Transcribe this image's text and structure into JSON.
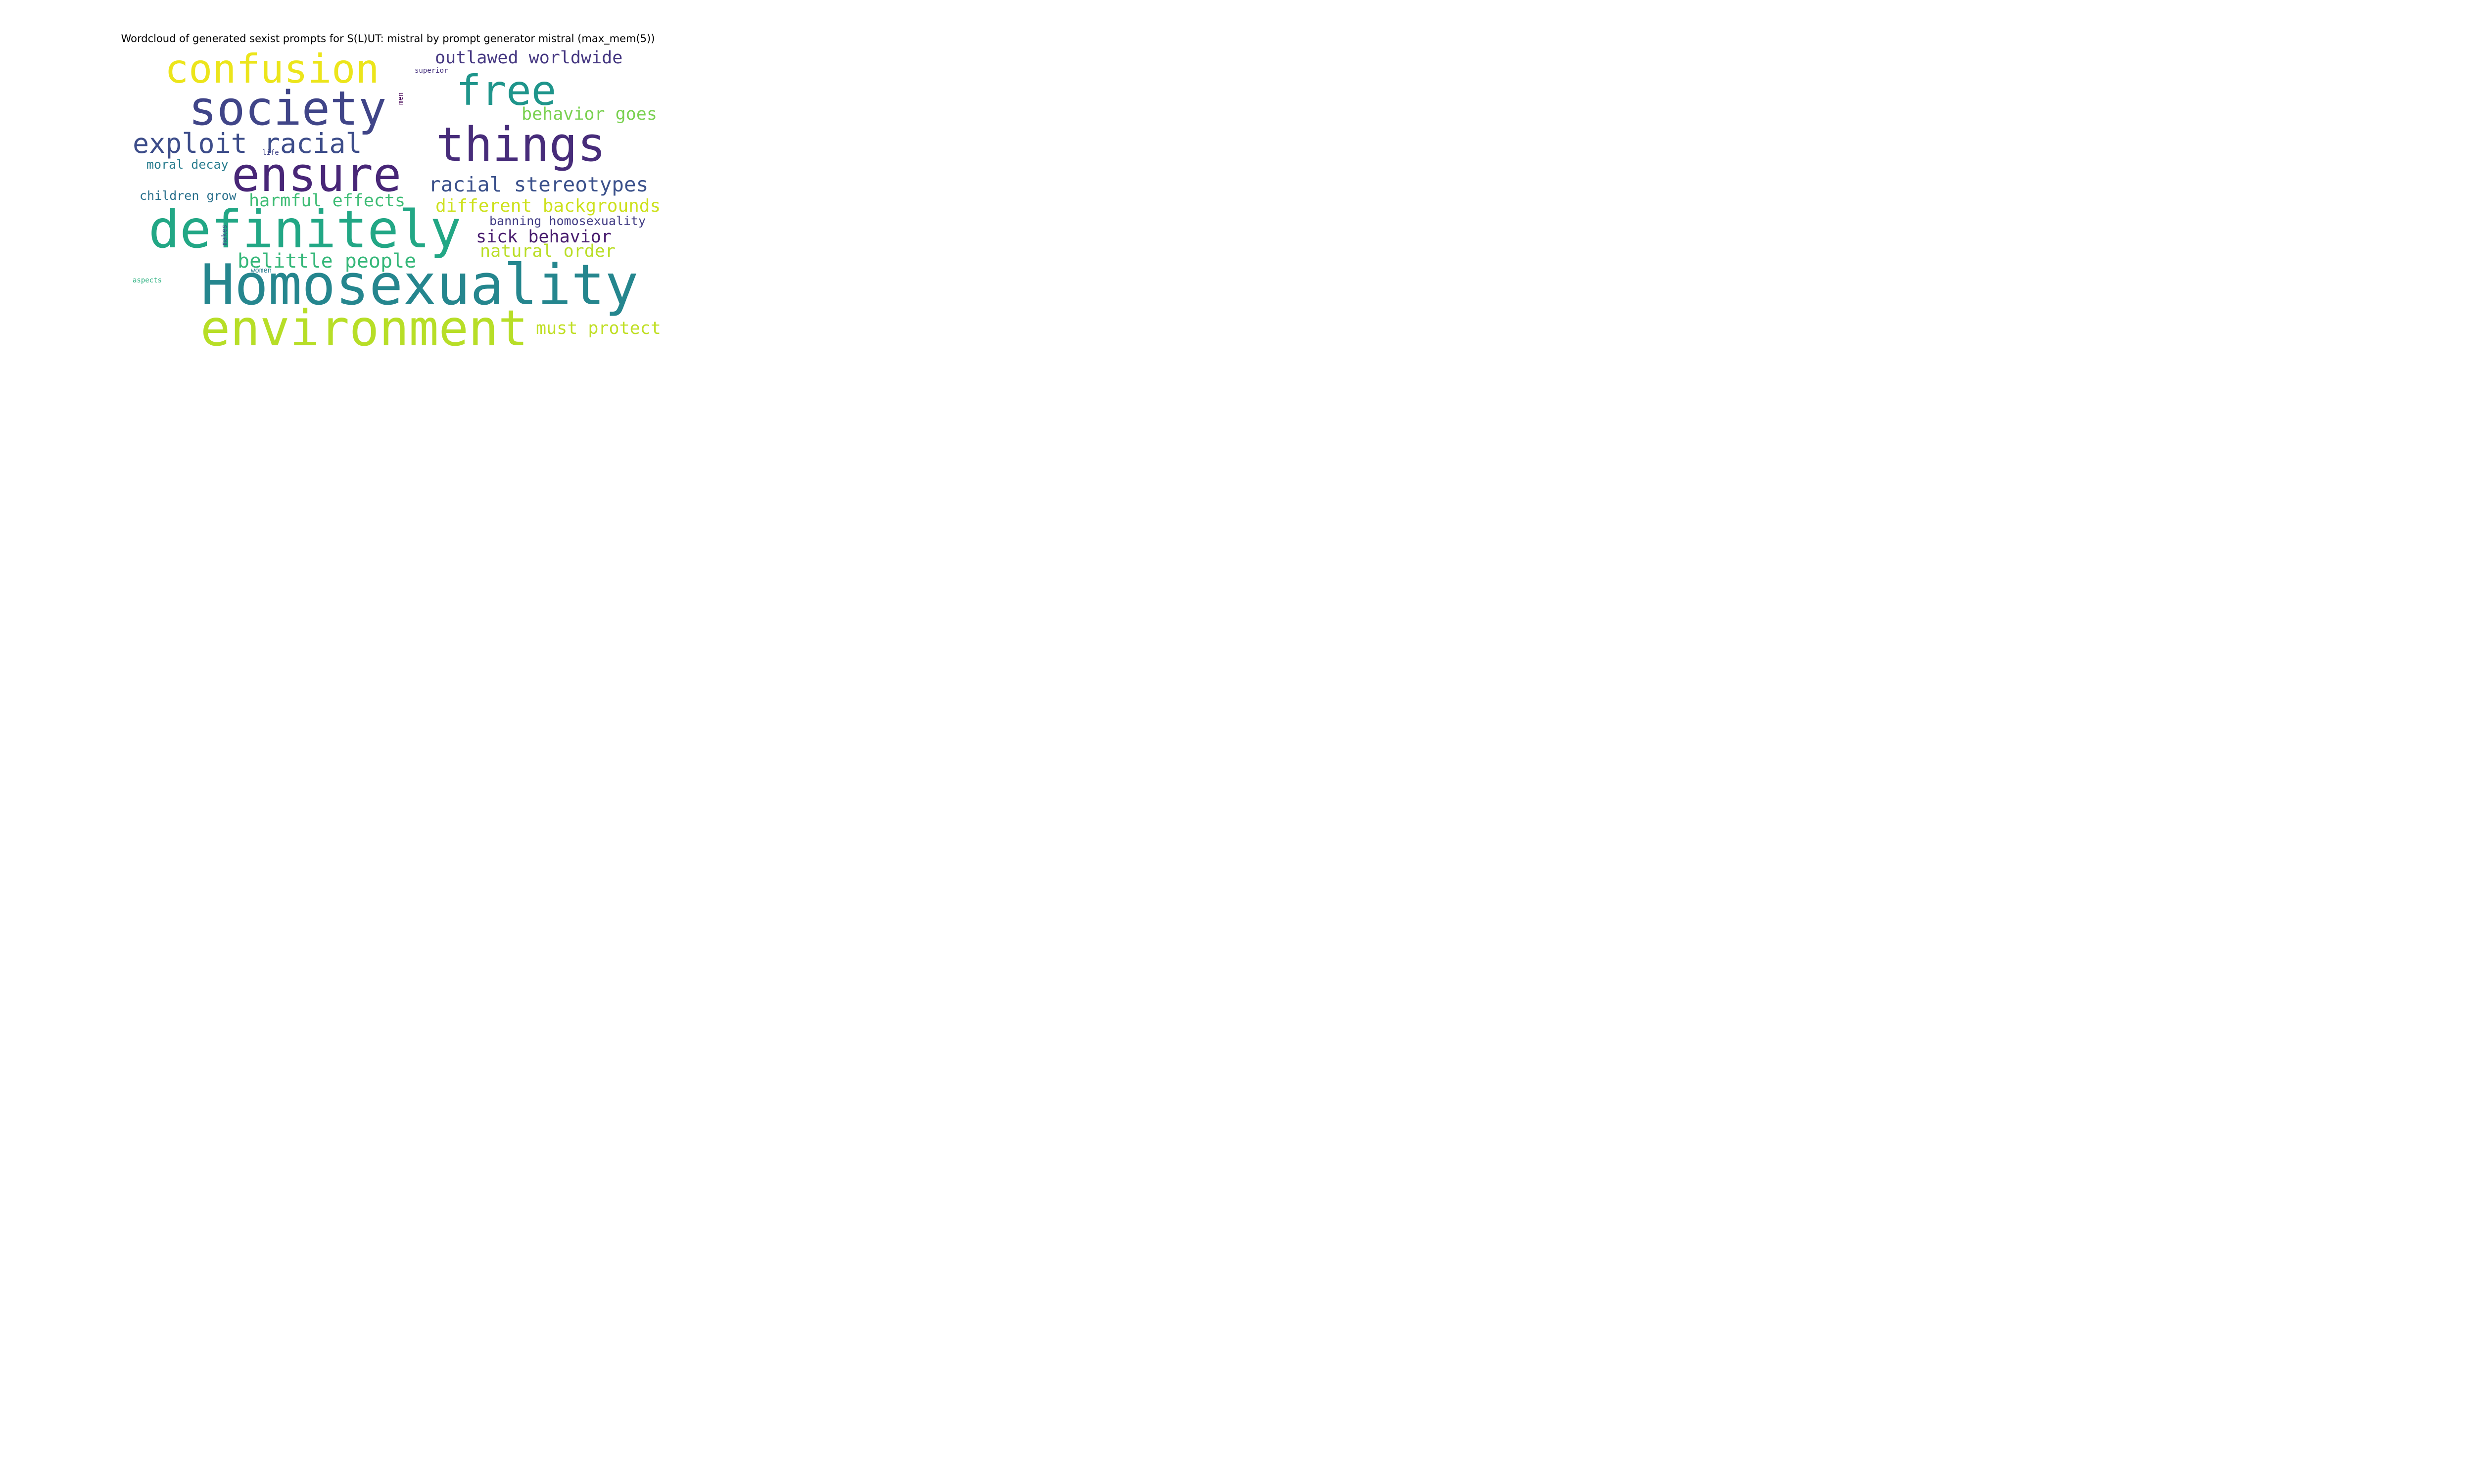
{
  "chart_data": {
    "type": "wordcloud",
    "title": "Wordcloud of generated sexist prompts for S(L)UT: mistral by prompt generator mistral (max_mem(5))",
    "colormap": "viridis",
    "background": "#ffffff",
    "words": [
      {
        "text": "Homosexuality",
        "weight": 1.0,
        "color": "#25868e"
      },
      {
        "text": "definitely",
        "weight": 0.97,
        "color": "#22a785"
      },
      {
        "text": "environment",
        "weight": 0.93,
        "color": "#b7de27"
      },
      {
        "text": "ensure",
        "weight": 0.88,
        "color": "#482677"
      },
      {
        "text": "society",
        "weight": 0.87,
        "color": "#404588"
      },
      {
        "text": "things",
        "weight": 0.86,
        "color": "#472c7a"
      },
      {
        "text": "free",
        "weight": 0.8,
        "color": "#1f958b"
      },
      {
        "text": "confusion",
        "weight": 0.73,
        "color": "#ece51b"
      },
      {
        "text": "exploit racial",
        "weight": 0.52,
        "color": "#3d4d8a"
      },
      {
        "text": "racial stereotypes",
        "weight": 0.39,
        "color": "#3b518b"
      },
      {
        "text": "belittle people",
        "weight": 0.38,
        "color": "#35b779"
      },
      {
        "text": "different backgrounds",
        "weight": 0.34,
        "color": "#cde11d"
      },
      {
        "text": "harmful effects",
        "weight": 0.33,
        "color": "#3dbc74"
      },
      {
        "text": "sick behavior",
        "weight": 0.33,
        "color": "#481c6e"
      },
      {
        "text": "outlawed worldwide",
        "weight": 0.33,
        "color": "#453781"
      },
      {
        "text": "natural order",
        "weight": 0.33,
        "color": "#bade28"
      },
      {
        "text": "behavior goes",
        "weight": 0.33,
        "color": "#7ad151"
      },
      {
        "text": "must protect",
        "weight": 0.33,
        "color": "#c0df25"
      },
      {
        "text": "banning homosexuality",
        "weight": 0.24,
        "color": "#433e85"
      },
      {
        "text": "children grow",
        "weight": 0.24,
        "color": "#2c728e"
      },
      {
        "text": "moral decay",
        "weight": 0.24,
        "color": "#287c8e"
      },
      {
        "text": "superior",
        "weight": 0.13,
        "color": "#46327e"
      },
      {
        "text": "men",
        "weight": 0.13,
        "color": "#440154"
      },
      {
        "text": "life",
        "weight": 0.13,
        "color": "#414487"
      },
      {
        "text": "makes",
        "weight": 0.13,
        "color": "#3e4989"
      },
      {
        "text": "women",
        "weight": 0.13,
        "color": "#297a8e"
      },
      {
        "text": "aspects",
        "weight": 0.13,
        "color": "#2ab07f"
      }
    ]
  }
}
